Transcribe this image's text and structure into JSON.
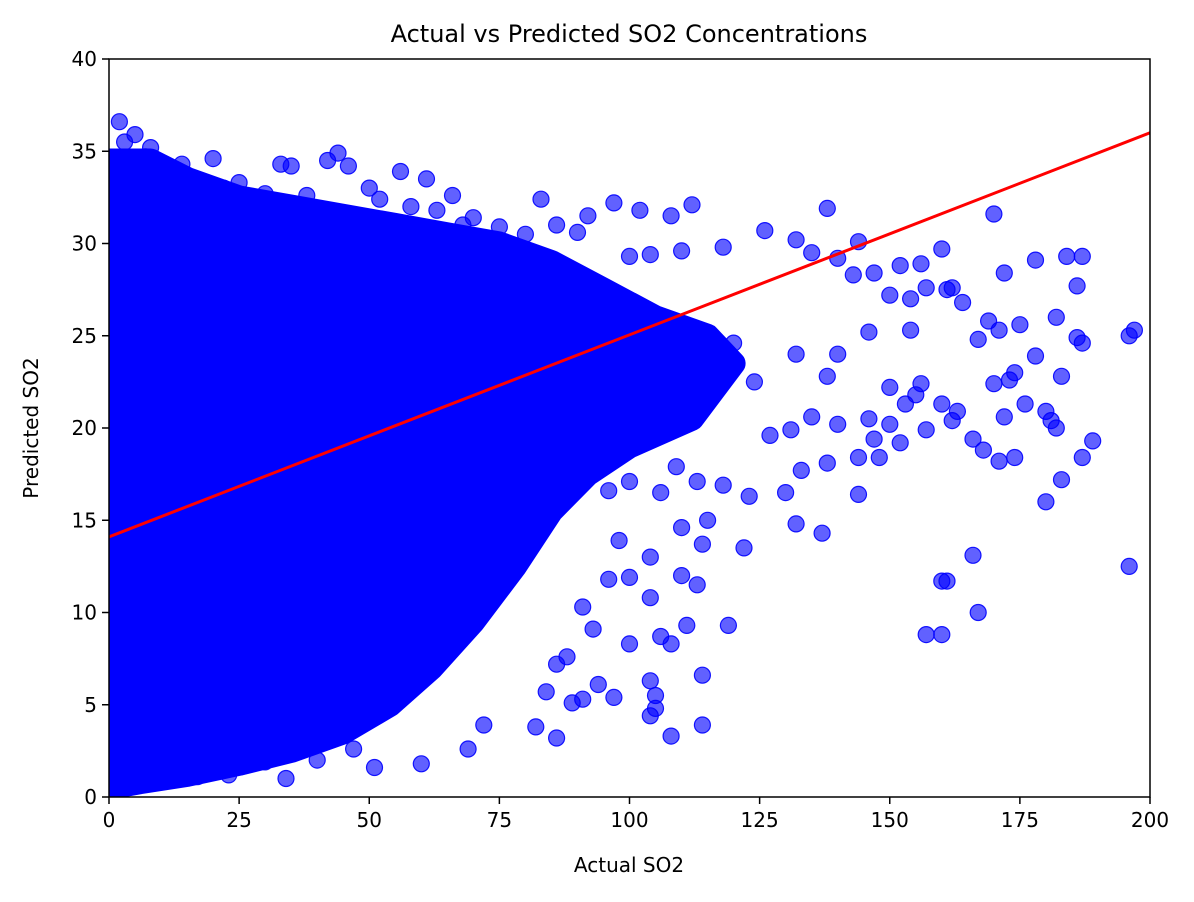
{
  "chart_data": {
    "type": "scatter",
    "title": "Actual vs Predicted SO2 Concentrations",
    "xlabel": "Actual SO2",
    "ylabel": "Predicted SO2",
    "xlim": [
      0,
      200
    ],
    "ylim": [
      0,
      40
    ],
    "xticks": [
      "0",
      "25",
      "50",
      "75",
      "100",
      "125",
      "150",
      "175",
      "200"
    ],
    "yticks": [
      "0",
      "5",
      "10",
      "15",
      "20",
      "25",
      "30",
      "35",
      "40"
    ],
    "grid": false,
    "legend": "none",
    "colors": {
      "points": "#0000ff",
      "fit_line": "#ff0000"
    },
    "fit_line": {
      "x": [
        0,
        200
      ],
      "y": [
        14.1,
        36.0
      ]
    },
    "series": [
      {
        "marker": "circle",
        "points": [
          [
            2,
            36.6
          ],
          [
            3,
            35.5
          ],
          [
            5,
            35.9
          ],
          [
            8,
            35.2
          ],
          [
            14,
            34.3
          ],
          [
            20,
            34.6
          ],
          [
            33,
            34.3
          ],
          [
            35,
            34.2
          ],
          [
            42,
            34.5
          ],
          [
            44,
            34.9
          ],
          [
            46,
            34.2
          ],
          [
            56,
            33.9
          ],
          [
            61,
            33.5
          ],
          [
            66,
            32.6
          ],
          [
            83,
            32.4
          ],
          [
            92,
            31.5
          ],
          [
            97,
            32.2
          ],
          [
            102,
            31.8
          ],
          [
            108,
            31.5
          ],
          [
            112,
            32.1
          ],
          [
            132,
            30.2
          ],
          [
            138,
            31.9
          ],
          [
            144,
            30.1
          ],
          [
            170,
            31.6
          ],
          [
            126,
            30.7
          ],
          [
            118,
            29.8
          ],
          [
            110,
            29.6
          ],
          [
            104,
            29.4
          ],
          [
            100,
            29.3
          ],
          [
            135,
            29.5
          ],
          [
            140,
            29.2
          ],
          [
            160,
            29.7
          ],
          [
            184,
            29.3
          ],
          [
            187,
            29.3
          ],
          [
            178,
            29.1
          ],
          [
            172,
            28.4
          ],
          [
            156,
            28.9
          ],
          [
            152,
            28.8
          ],
          [
            147,
            28.4
          ],
          [
            143,
            28.3
          ],
          [
            162,
            27.6
          ],
          [
            161,
            27.5
          ],
          [
            150,
            27.2
          ],
          [
            157,
            27.6
          ],
          [
            154,
            27.0
          ],
          [
            186,
            27.7
          ],
          [
            164,
            26.8
          ],
          [
            182,
            26.0
          ],
          [
            175,
            25.6
          ],
          [
            169,
            25.8
          ],
          [
            171,
            25.3
          ],
          [
            167,
            24.8
          ],
          [
            196,
            25.0
          ],
          [
            197,
            25.3
          ],
          [
            186,
            24.9
          ],
          [
            187,
            24.6
          ],
          [
            154,
            25.3
          ],
          [
            146,
            25.2
          ],
          [
            140,
            24.0
          ],
          [
            132,
            24.0
          ],
          [
            120,
            24.6
          ],
          [
            114,
            23.8
          ],
          [
            124,
            22.5
          ],
          [
            138,
            22.8
          ],
          [
            150,
            22.2
          ],
          [
            156,
            22.4
          ],
          [
            170,
            22.4
          ],
          [
            174,
            23.0
          ],
          [
            183,
            22.8
          ],
          [
            173,
            22.6
          ],
          [
            178,
            23.9
          ],
          [
            155,
            21.8
          ],
          [
            153,
            21.3
          ],
          [
            160,
            21.3
          ],
          [
            163,
            20.9
          ],
          [
            172,
            20.6
          ],
          [
            176,
            21.3
          ],
          [
            180,
            20.9
          ],
          [
            181,
            20.4
          ],
          [
            162,
            20.4
          ],
          [
            150,
            20.2
          ],
          [
            146,
            20.5
          ],
          [
            140,
            20.2
          ],
          [
            135,
            20.6
          ],
          [
            131,
            19.9
          ],
          [
            127,
            19.6
          ],
          [
            147,
            19.4
          ],
          [
            152,
            19.2
          ],
          [
            157,
            19.9
          ],
          [
            166,
            19.4
          ],
          [
            168,
            18.8
          ],
          [
            174,
            18.4
          ],
          [
            171,
            18.2
          ],
          [
            187,
            18.4
          ],
          [
            189,
            19.3
          ],
          [
            182,
            20.0
          ],
          [
            148,
            18.4
          ],
          [
            144,
            18.4
          ],
          [
            138,
            18.1
          ],
          [
            133,
            17.7
          ],
          [
            130,
            16.5
          ],
          [
            123,
            16.3
          ],
          [
            118,
            16.9
          ],
          [
            113,
            17.1
          ],
          [
            109,
            17.9
          ],
          [
            106,
            16.5
          ],
          [
            100,
            17.1
          ],
          [
            96,
            16.6
          ],
          [
            132,
            14.8
          ],
          [
            137,
            14.3
          ],
          [
            144,
            16.4
          ],
          [
            180,
            16.0
          ],
          [
            183,
            17.2
          ],
          [
            166,
            13.1
          ],
          [
            196,
            12.5
          ],
          [
            160,
            11.7
          ],
          [
            161,
            11.7
          ],
          [
            157,
            8.8
          ],
          [
            160,
            8.8
          ],
          [
            167,
            10.0
          ],
          [
            122,
            13.5
          ],
          [
            115,
            15.0
          ],
          [
            114,
            13.7
          ],
          [
            110,
            14.6
          ],
          [
            104,
            13.0
          ],
          [
            98,
            13.9
          ],
          [
            96,
            11.8
          ],
          [
            100,
            11.9
          ],
          [
            104,
            10.8
          ],
          [
            110,
            12.0
          ],
          [
            113,
            11.5
          ],
          [
            119,
            9.3
          ],
          [
            111,
            9.3
          ],
          [
            106,
            8.7
          ],
          [
            108,
            8.3
          ],
          [
            100,
            8.3
          ],
          [
            93,
            9.1
          ],
          [
            91,
            10.3
          ],
          [
            88,
            7.6
          ],
          [
            86,
            7.2
          ],
          [
            84,
            5.7
          ],
          [
            89,
            5.1
          ],
          [
            91,
            5.3
          ],
          [
            94,
            6.1
          ],
          [
            97,
            5.4
          ],
          [
            104,
            6.3
          ],
          [
            105,
            5.5
          ],
          [
            104,
            4.4
          ],
          [
            105,
            4.8
          ],
          [
            108,
            3.3
          ],
          [
            114,
            3.9
          ],
          [
            114,
            6.6
          ],
          [
            82,
            3.8
          ],
          [
            86,
            3.2
          ],
          [
            72,
            3.9
          ],
          [
            69,
            2.6
          ],
          [
            60,
            1.8
          ],
          [
            51,
            1.6
          ],
          [
            47,
            2.6
          ],
          [
            40,
            2.0
          ],
          [
            34,
            1.0
          ],
          [
            30,
            1.9
          ],
          [
            23,
            1.2
          ],
          [
            17,
            1.1
          ],
          [
            13,
            1.4
          ],
          [
            9,
            0.8
          ],
          [
            6,
            1.2
          ],
          [
            3,
            1.0
          ],
          [
            1,
            0.9
          ],
          [
            90,
            30.6
          ],
          [
            86,
            31.0
          ],
          [
            80,
            30.5
          ],
          [
            75,
            30.9
          ],
          [
            70,
            31.4
          ],
          [
            68,
            31.0
          ],
          [
            63,
            31.8
          ],
          [
            58,
            32.0
          ],
          [
            52,
            32.4
          ],
          [
            50,
            33.0
          ],
          [
            38,
            32.6
          ],
          [
            30,
            32.7
          ],
          [
            25,
            33.3
          ],
          [
            22,
            33.0
          ],
          [
            16,
            33.3
          ],
          [
            12,
            33.4
          ],
          [
            10,
            33.8
          ],
          [
            7,
            34.7
          ]
        ]
      }
    ]
  }
}
